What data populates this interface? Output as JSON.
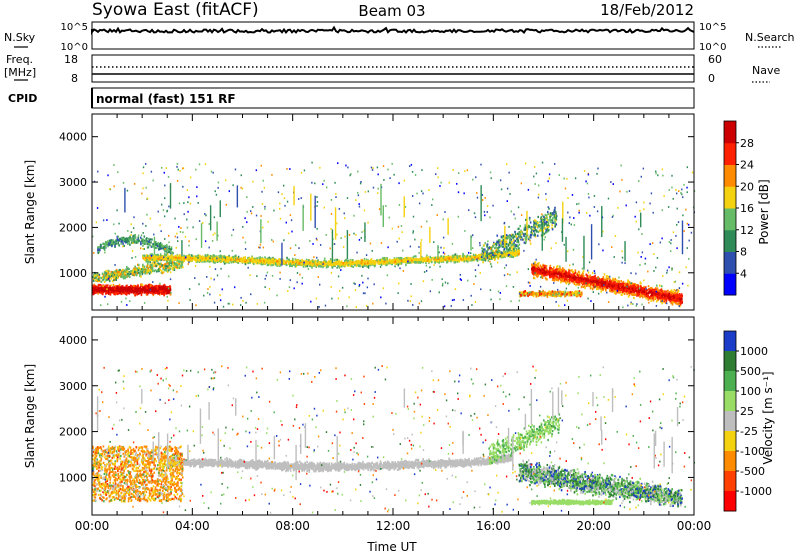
{
  "header": {
    "station": "Syowa East (fitACF)",
    "beam": "Beam 03",
    "date": "18/Feb/2012"
  },
  "top_panels": {
    "nsky_label": "N.Sky",
    "nsky_ticks": [
      "10^5",
      "10^0"
    ],
    "nsearch_label": "N.Search",
    "nsearch_ticks": [
      "10^5",
      "10^0"
    ],
    "freq_label_1": "Freq.",
    "freq_label_2": "[MHz]",
    "freq_ticks": [
      "18",
      "8"
    ],
    "nave_label": "Nave",
    "nave_ticks": [
      "60",
      "0"
    ],
    "cpid_label": "CPID",
    "cpid_text": "normal (fast) 151 RF"
  },
  "chart_data": [
    {
      "type": "heatmap",
      "title": "",
      "ylabel": "Slant Range [km]",
      "xlabel": "",
      "x_range_hours": [
        0,
        24
      ],
      "ylim": [
        180,
        4500
      ],
      "yticks": [
        "1000",
        "2000",
        "3000",
        "4000"
      ],
      "colorbar_label": "Power [dB]",
      "colorbar_ticks": [
        "28",
        "24",
        "20",
        "16",
        "12",
        "8",
        "4"
      ],
      "colorbar_colors": [
        "#0000ff",
        "#2f4fae",
        "#2e8b57",
        "#66bb66",
        "#f4d20f",
        "#ff8c00",
        "#ff2000",
        "#cc0000"
      ],
      "features": [
        {
          "from_hour": 0,
          "to_hour": 3,
          "range_km": [
            500,
            800
          ],
          "level": "strong"
        },
        {
          "from_hour": 0,
          "to_hour": 17,
          "range_km": [
            1200,
            1500
          ],
          "level": "moderate"
        },
        {
          "from_hour": 17.5,
          "to_hour": 23.5,
          "range_km": [
            300,
            1200
          ],
          "level": "strong"
        }
      ]
    },
    {
      "type": "heatmap",
      "title": "",
      "ylabel": "Slant Range [km]",
      "xlabel": "Time UT",
      "x_range_hours": [
        0,
        24
      ],
      "ylim": [
        180,
        4500
      ],
      "yticks": [
        "1000",
        "2000",
        "3000",
        "4000"
      ],
      "xticks": [
        "00:00",
        "04:00",
        "08:00",
        "12:00",
        "16:00",
        "20:00",
        "00:00"
      ],
      "colorbar_label": "Velocity [m s⁻¹]",
      "colorbar_ticks": [
        "1000",
        "500",
        "100",
        "25",
        "-25",
        "-100",
        "-500",
        "-1000"
      ],
      "colorbar_colors": [
        "#1a3cc8",
        "#2e7d32",
        "#4caf50",
        "#99dd66",
        "#bebebe",
        "#f4d20f",
        "#ff8c00",
        "#ff4000",
        "#ff0000"
      ],
      "features": [
        {
          "from_hour": 0,
          "to_hour": 3.5,
          "range_km": [
            500,
            1700
          ],
          "level": "mixed"
        },
        {
          "from_hour": 3,
          "to_hour": 16.5,
          "range_km": [
            1150,
            1500
          ],
          "level": "ground-scatter"
        },
        {
          "from_hour": 17,
          "to_hour": 23.5,
          "range_km": [
            400,
            1300
          ],
          "level": "mixed"
        }
      ]
    }
  ]
}
